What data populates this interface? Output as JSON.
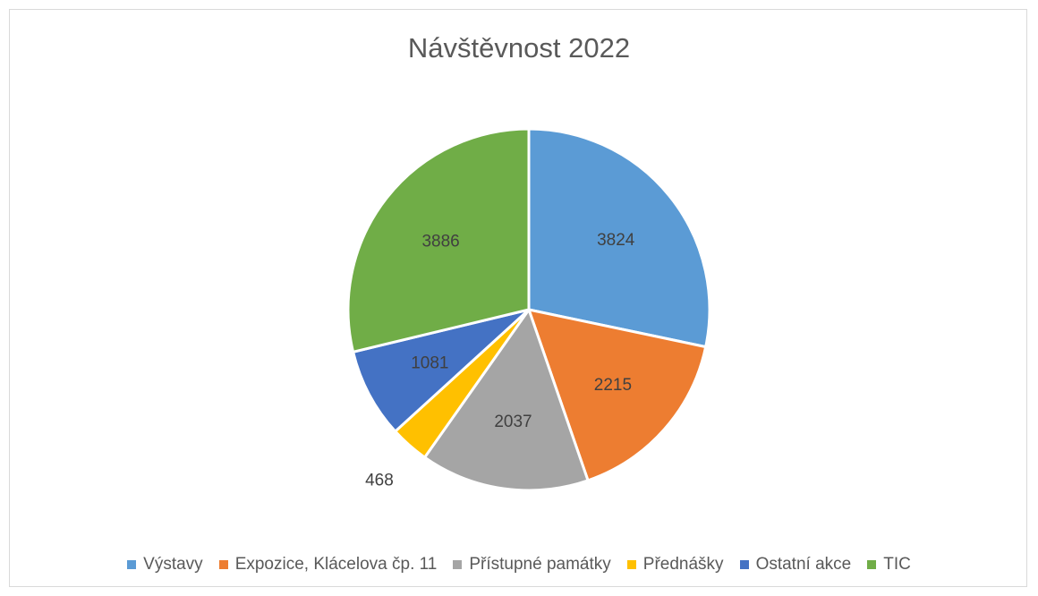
{
  "chart_data": {
    "type": "pie",
    "title": "Návštěvnost 2022",
    "categories": [
      "Výstavy",
      "Expozice, Klácelova čp. 11",
      "Přístupné památky",
      "Přednášky",
      "Ostatní akce",
      "TIC"
    ],
    "values": [
      3824,
      2215,
      2037,
      468,
      1081,
      3886
    ],
    "colors": [
      "#5b9bd5",
      "#ed7d31",
      "#a5a5a5",
      "#ffc000",
      "#4472c4",
      "#70ad47"
    ],
    "data_labels": [
      "3824",
      "2215",
      "2037",
      "468",
      "1081",
      "3886"
    ],
    "legend_position": "bottom",
    "start_angle": "12 o'clock",
    "direction": "clockwise"
  }
}
